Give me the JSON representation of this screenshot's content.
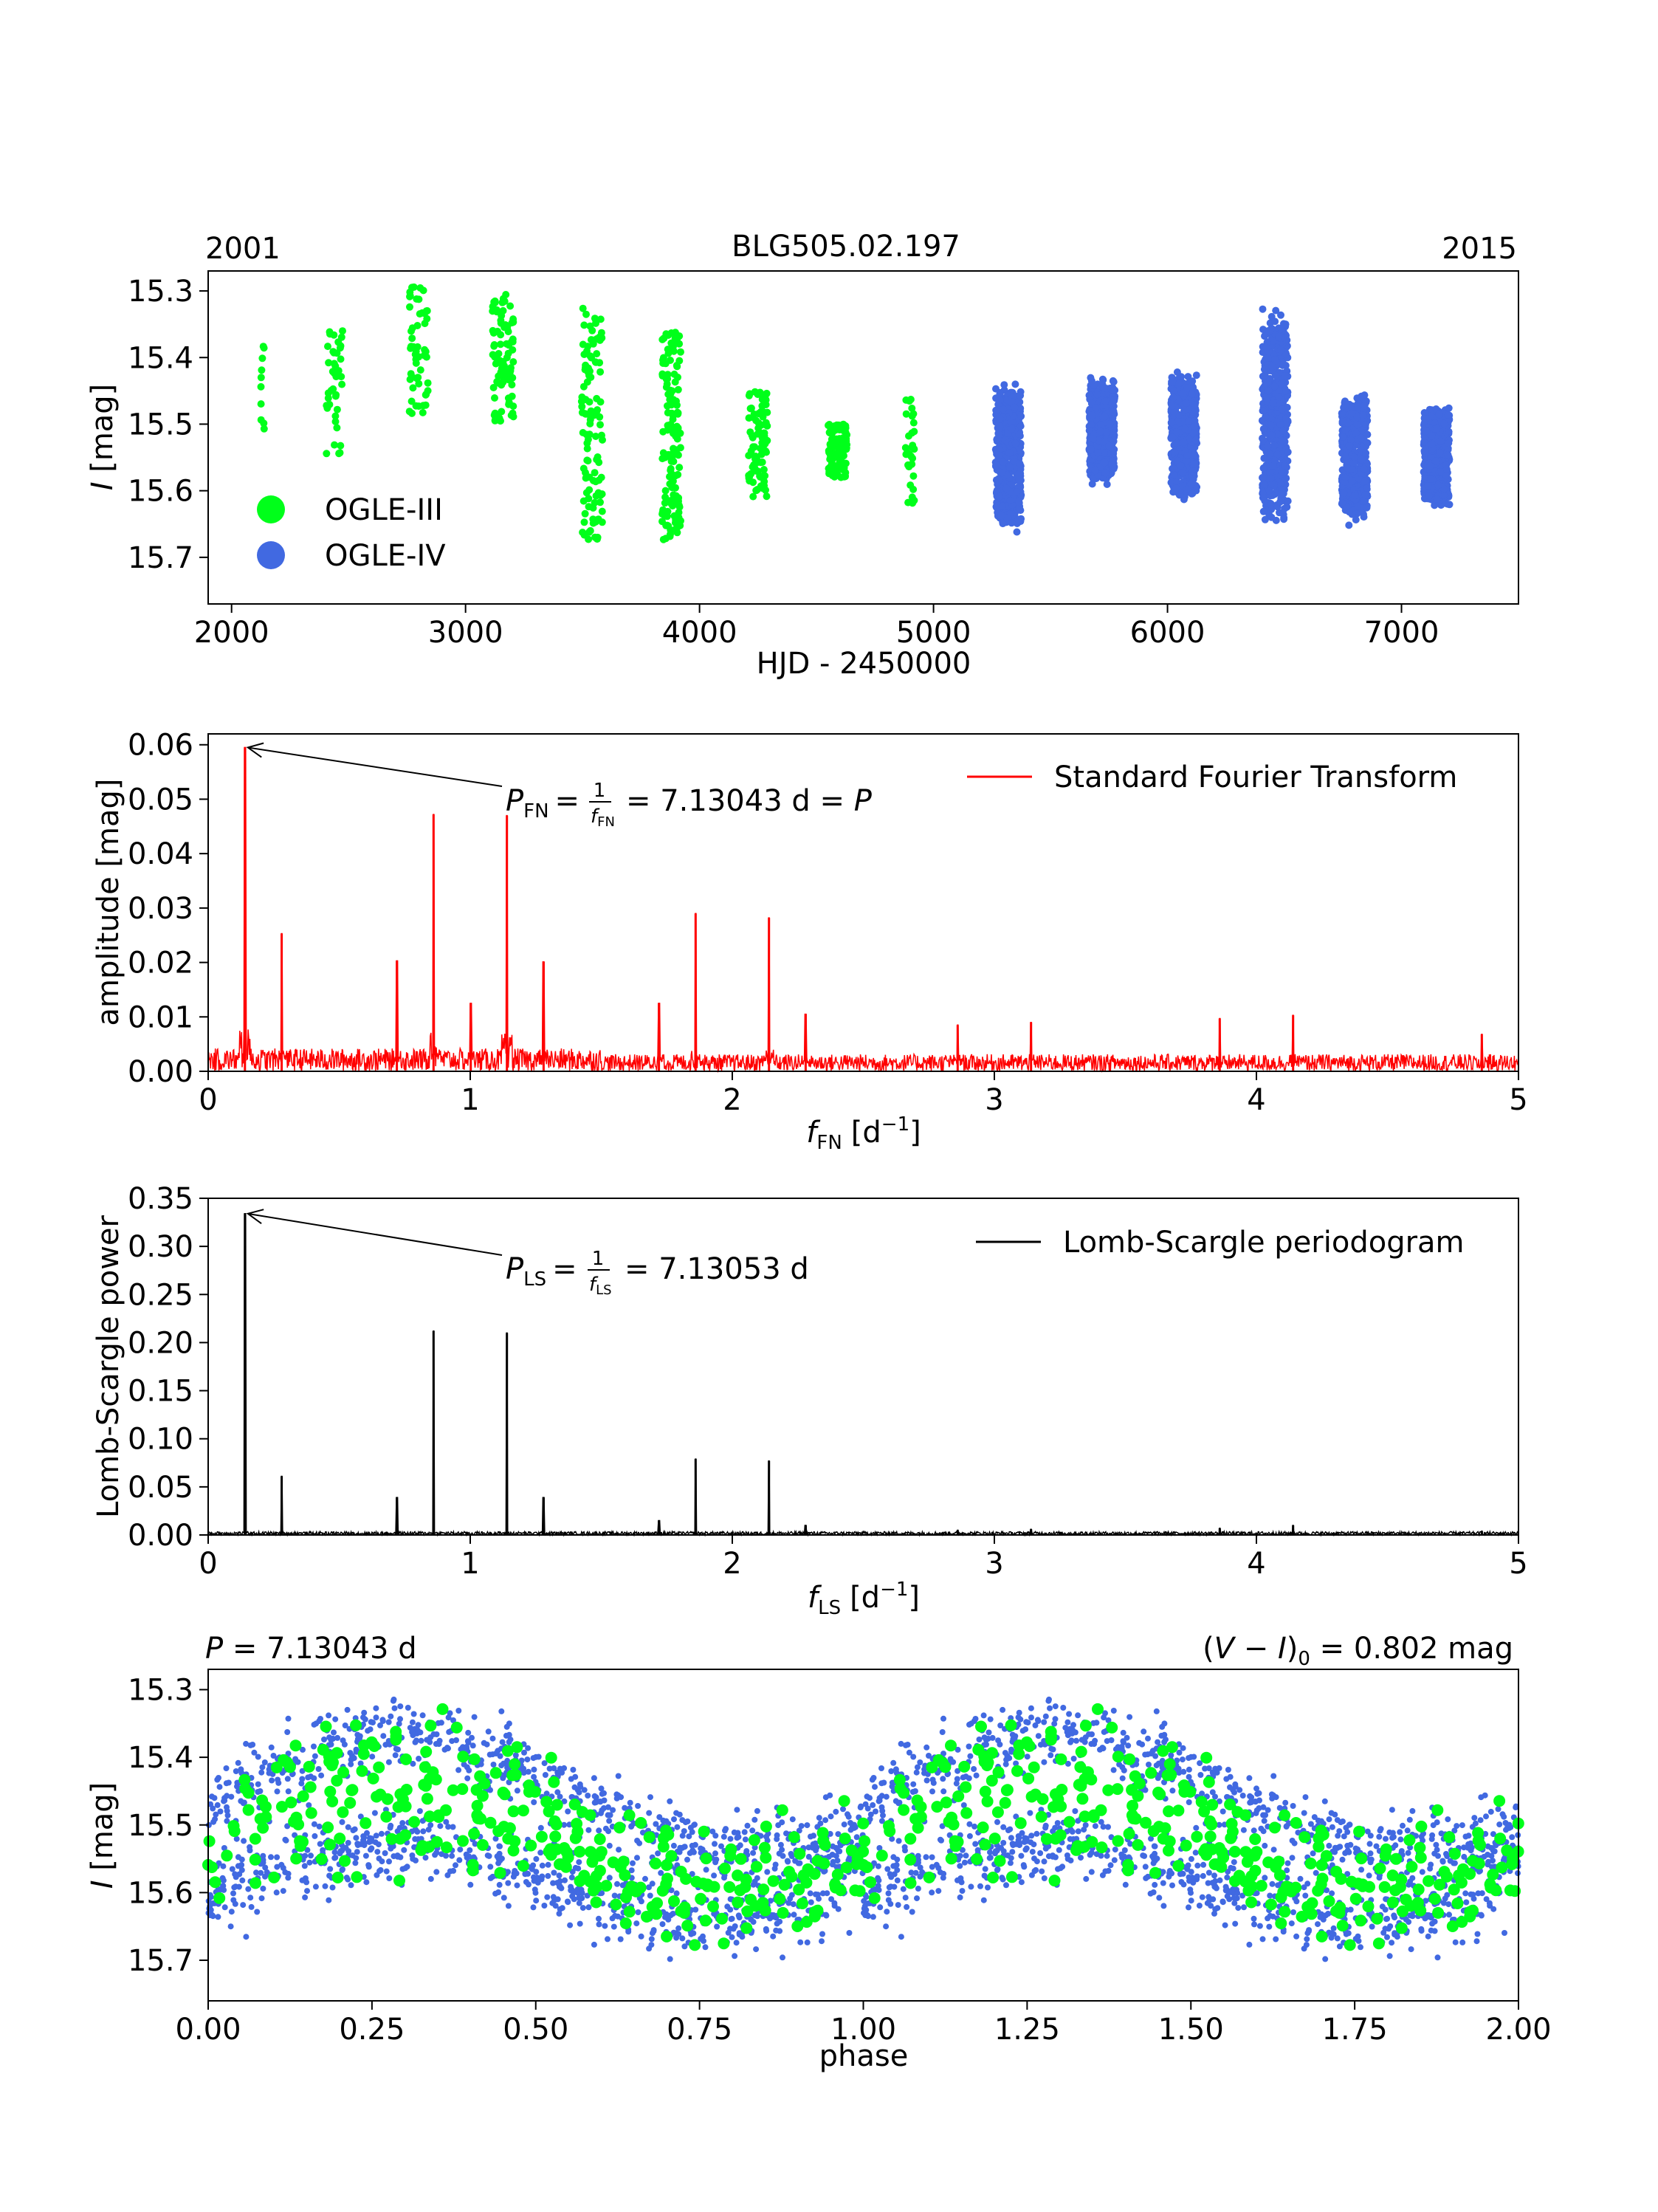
{
  "figure": {
    "star_id": "BLG505.02.197"
  },
  "colors": {
    "ogle3": "#00ff1a",
    "ogle4": "#4169e1",
    "fourier": "#ff0000",
    "lomb": "#000000"
  },
  "chart_data": [
    {
      "type": "scatter",
      "title": "BLG505.02.197",
      "corner_left": "2001",
      "corner_right": "2015",
      "xlabel": "HJD - 2450000",
      "ylabel_var": "I",
      "ylabel_unit": " [mag]",
      "xlim": [
        1900,
        7500
      ],
      "ylim": [
        15.77,
        15.27
      ],
      "xticks": [
        2000,
        3000,
        4000,
        5000,
        6000,
        7000
      ],
      "yticks": [
        15.3,
        15.4,
        15.5,
        15.6,
        15.7
      ],
      "ytick_labels": [
        "15.3",
        "15.4",
        "15.5",
        "15.6",
        "15.7"
      ],
      "legend": [
        {
          "label": "OGLE-III",
          "color": "#00ff1a"
        },
        {
          "label": "OGLE-IV",
          "color": "#4169e1"
        }
      ],
      "legend_position": "lower-left",
      "seasons_ogle3": [
        [
          2130,
          20,
          15.42,
          0.06,
          10
        ],
        [
          2440,
          70,
          15.45,
          0.06,
          40
        ],
        [
          2800,
          80,
          15.39,
          0.06,
          55
        ],
        [
          3160,
          90,
          15.4,
          0.06,
          90
        ],
        [
          3540,
          90,
          15.5,
          0.11,
          110
        ],
        [
          3880,
          80,
          15.52,
          0.1,
          140
        ],
        [
          4250,
          80,
          15.53,
          0.05,
          90
        ],
        [
          4590,
          80,
          15.54,
          0.025,
          120
        ],
        [
          4900,
          40,
          15.54,
          0.05,
          30
        ]
      ],
      "seasons_ogle4": [
        [
          5320,
          110,
          15.55,
          0.07,
          500
        ],
        [
          5720,
          110,
          15.51,
          0.05,
          500
        ],
        [
          6070,
          110,
          15.52,
          0.06,
          500
        ],
        [
          6460,
          110,
          15.49,
          0.1,
          500
        ],
        [
          6800,
          110,
          15.55,
          0.06,
          500
        ],
        [
          7150,
          110,
          15.55,
          0.05,
          500
        ]
      ]
    },
    {
      "type": "line",
      "legend": [
        "Standard Fourier Transform"
      ],
      "legend_position": "top-right",
      "xlim": [
        0,
        5
      ],
      "ylim": [
        0,
        0.062
      ],
      "xticks": [
        0,
        1,
        2,
        3,
        4,
        5
      ],
      "yticks": [
        0,
        0.01,
        0.02,
        0.03,
        0.04,
        0.05,
        0.06
      ],
      "ytick_labels": [
        "0.00",
        "0.01",
        "0.02",
        "0.03",
        "0.04",
        "0.05",
        "0.06"
      ],
      "ylabel": "amplitude [mag]",
      "xlabel_var": "f",
      "xlabel_sub": "FN",
      "xlabel_unit": "[d",
      "xlabel_exp": "−1",
      "xlabel_close": "]",
      "noise_level": 0.0035,
      "peaks": [
        {
          "f": 0.1403,
          "amp": 0.0595
        },
        {
          "f": 0.2805,
          "amp": 0.0253
        },
        {
          "f": 0.72,
          "amp": 0.0203
        },
        {
          "f": 0.86,
          "amp": 0.0472
        },
        {
          "f": 1.002,
          "amp": 0.0125
        },
        {
          "f": 1.14,
          "amp": 0.047
        },
        {
          "f": 1.28,
          "amp": 0.0201
        },
        {
          "f": 1.72,
          "amp": 0.0125
        },
        {
          "f": 1.86,
          "amp": 0.029
        },
        {
          "f": 2.14,
          "amp": 0.0282
        },
        {
          "f": 2.28,
          "amp": 0.0105
        },
        {
          "f": 2.86,
          "amp": 0.0085
        },
        {
          "f": 3.14,
          "amp": 0.009
        },
        {
          "f": 3.86,
          "amp": 0.0097
        },
        {
          "f": 4.14,
          "amp": 0.0103
        },
        {
          "f": 4.86,
          "amp": 0.0068
        }
      ],
      "annotation": {
        "var": "P",
        "sub": "FN",
        "eq": "=",
        "frac_num": "1",
        "frac_var": "f",
        "frac_sub": "FN",
        "value": "= 7.13043 d = ",
        "tail": "P",
        "arrow_from_f": 0.1403,
        "arrow_from_amp": 0.0595
      }
    },
    {
      "type": "line",
      "legend": [
        "Lomb-Scargle periodogram"
      ],
      "legend_position": "top-right",
      "xlim": [
        0,
        5
      ],
      "ylim": [
        0,
        0.35
      ],
      "xticks": [
        0,
        1,
        2,
        3,
        4,
        5
      ],
      "yticks": [
        0,
        0.05,
        0.1,
        0.15,
        0.2,
        0.25,
        0.3,
        0.35
      ],
      "ytick_labels": [
        "0.00",
        "0.05",
        "0.10",
        "0.15",
        "0.20",
        "0.25",
        "0.30",
        "0.35"
      ],
      "ylabel": "Lomb-Scargle power",
      "xlabel_var": "f",
      "xlabel_sub": "LS",
      "xlabel_unit": "[d",
      "xlabel_exp": "−1",
      "xlabel_close": "]",
      "peaks": [
        {
          "f": 0.1403,
          "power": 0.334
        },
        {
          "f": 0.2805,
          "power": 0.061
        },
        {
          "f": 0.72,
          "power": 0.039
        },
        {
          "f": 0.86,
          "power": 0.212
        },
        {
          "f": 1.14,
          "power": 0.21
        },
        {
          "f": 1.28,
          "power": 0.039
        },
        {
          "f": 1.72,
          "power": 0.015
        },
        {
          "f": 1.86,
          "power": 0.079
        },
        {
          "f": 2.14,
          "power": 0.077
        },
        {
          "f": 2.28,
          "power": 0.01
        },
        {
          "f": 2.86,
          "power": 0.005
        },
        {
          "f": 3.14,
          "power": 0.006
        },
        {
          "f": 3.86,
          "power": 0.007
        },
        {
          "f": 4.14,
          "power": 0.01
        },
        {
          "f": 4.86,
          "power": 0.004
        }
      ],
      "annotation": {
        "var": "P",
        "sub": "LS",
        "eq": "=",
        "frac_num": "1",
        "frac_var": "f",
        "frac_sub": "LS",
        "value": "= 7.13053 d",
        "arrow_from_f": 0.1403,
        "arrow_from_power": 0.334
      }
    },
    {
      "type": "scatter",
      "xlabel": "phase",
      "ylabel_var": "I",
      "ylabel_unit": " [mag]",
      "xlim": [
        0,
        2
      ],
      "ylim": [
        15.76,
        15.27
      ],
      "xticks": [
        0,
        0.25,
        0.5,
        0.75,
        1,
        1.25,
        1.5,
        1.75,
        2
      ],
      "xtick_labels": [
        "0.00",
        "0.25",
        "0.50",
        "0.75",
        "1.00",
        "1.25",
        "1.50",
        "1.75",
        "2.00"
      ],
      "yticks": [
        15.3,
        15.4,
        15.5,
        15.6,
        15.7
      ],
      "ytick_labels": [
        "15.3",
        "15.4",
        "15.5",
        "15.6",
        "15.7"
      ],
      "period_label": {
        "var": "P",
        "value": " = 7.13043 d"
      },
      "color_label": {
        "open": "(",
        "var1": "V",
        "minus": " − ",
        "var2": "I",
        "close": ")",
        "sub": "0",
        "value": " = 0.802 mag"
      },
      "mean_mag": 15.52,
      "amplitude": 0.07,
      "peak_phase": 0.29,
      "envelope_amp": 0.08,
      "n_ogle3": 300,
      "n_ogle4": 1400
    }
  ]
}
